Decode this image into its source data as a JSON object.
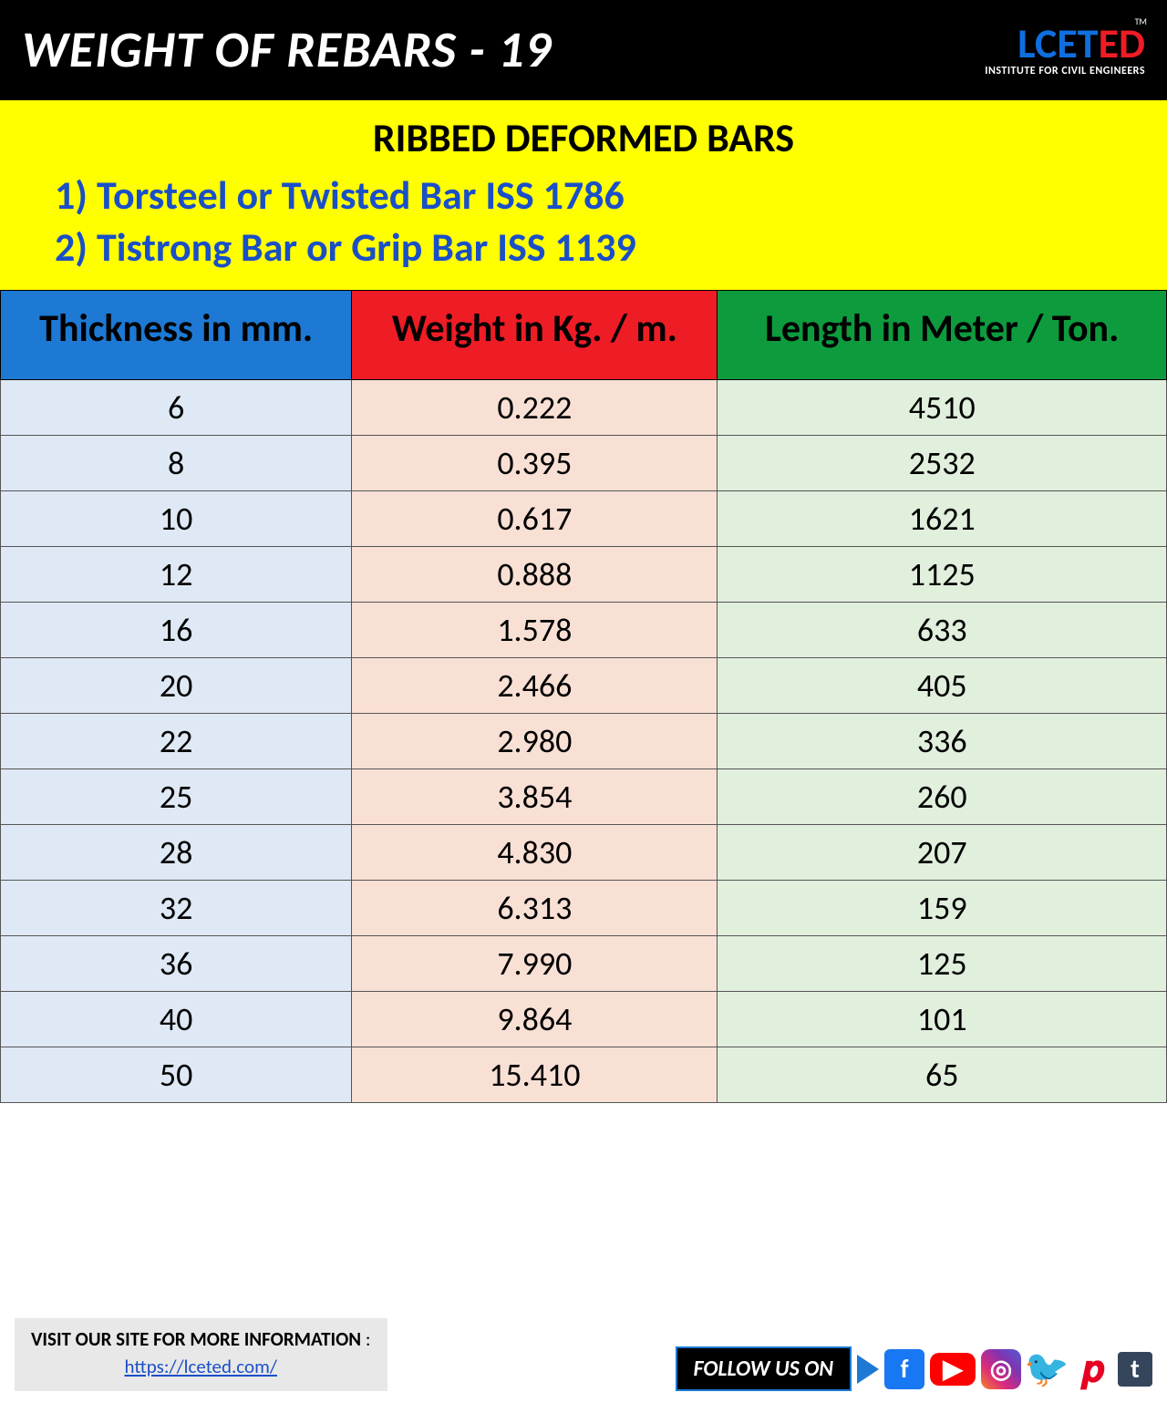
{
  "header": {
    "title": "WEIGHT OF REBARS - 19",
    "brand": {
      "part1": "LCET",
      "part2": "ED",
      "tm": "TM",
      "sub": "INSTITUTE FOR CIVIL ENGINEERS"
    }
  },
  "subtitle": {
    "line0": "RIBBED DEFORMED BARS",
    "line1": "1)  Torsteel or Twisted Bar ISS 1786",
    "line2": "2)  Tistrong Bar or Grip Bar ISS 1139"
  },
  "table": {
    "headers": [
      "Thickness in mm.",
      "Weight in Kg. / m.",
      "Length in Meter / Ton."
    ],
    "header_colors": [
      "#1d79d3",
      "#ee1c25",
      "#0d9b3e"
    ],
    "col_bg": [
      "#dfe9f5",
      "#f9e0d5",
      "#e1efdd"
    ],
    "font_size_header": 42,
    "font_size_cell": 36,
    "rows": [
      [
        "6",
        "0.222",
        "4510"
      ],
      [
        "8",
        "0.395",
        "2532"
      ],
      [
        "10",
        "0.617",
        "1621"
      ],
      [
        "12",
        "0.888",
        "1125"
      ],
      [
        "16",
        "1.578",
        "633"
      ],
      [
        "20",
        "2.466",
        "405"
      ],
      [
        "22",
        "2.980",
        "336"
      ],
      [
        "25",
        "3.854",
        "260"
      ],
      [
        "28",
        "4.830",
        "207"
      ],
      [
        "32",
        "6.313",
        "159"
      ],
      [
        "36",
        "7.990",
        "125"
      ],
      [
        "40",
        "9.864",
        "101"
      ],
      [
        "50",
        "15.410",
        "65"
      ]
    ]
  },
  "watermark": {
    "part1": "LCET",
    "part2": "ED"
  },
  "footer": {
    "visit": "VISIT OUR SITE FOR MORE INFORMATION",
    "colon": " :",
    "url": "https://lceted.com/",
    "follow": "FOLLOW US ON",
    "icons": [
      "play",
      "facebook",
      "youtube",
      "instagram",
      "twitter",
      "pinterest",
      "tumblr"
    ]
  },
  "colors": {
    "yellow": "#ffff00",
    "black": "#000000",
    "blue": "#0f6fde",
    "red": "#ee1c25",
    "green": "#0d9b3e"
  }
}
